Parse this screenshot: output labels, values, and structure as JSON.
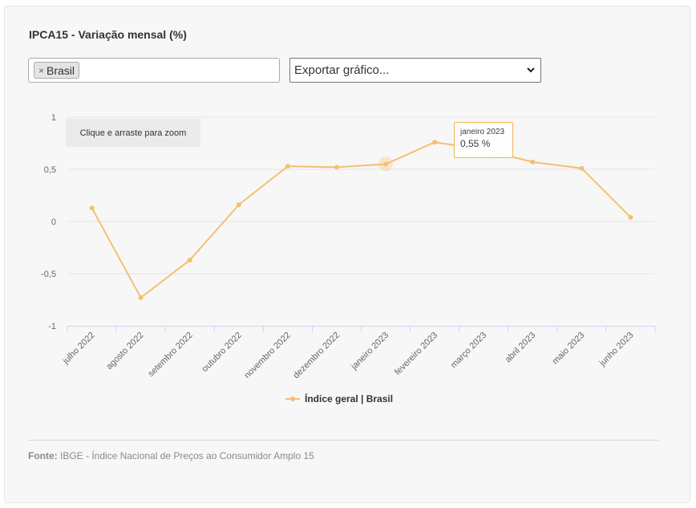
{
  "title": "IPCA15 - Variação mensal (%)",
  "filter": {
    "chip_label": "Brasil",
    "remove_symbol": "×"
  },
  "export_select": {
    "selected": "Exportar gráfico..."
  },
  "zoom_hint": "Clique e arraste para zoom",
  "tooltip": {
    "date": "janeiro 2023",
    "value": "0,55 %"
  },
  "legend_label": "Índice geral | Brasil",
  "source": {
    "label": "Fonte:",
    "text": "IBGE - Índice Nacional de Preços ao Consumidor Amplo 15"
  },
  "colors": {
    "series": "#f5bf73",
    "grid": "#e6e6e6",
    "axis": "#ccd6eb"
  },
  "chart_data": {
    "type": "line",
    "categories": [
      "julho 2022",
      "agosto 2022",
      "setembro 2022",
      "outubro 2022",
      "novembro 2022",
      "dezembro 2022",
      "janeiro 2023",
      "fevereiro 2023",
      "março 2023",
      "abril 2023",
      "maio 2023",
      "junho 2023"
    ],
    "series": [
      {
        "name": "Índice geral | Brasil",
        "values": [
          0.13,
          -0.73,
          -0.37,
          0.16,
          0.53,
          0.52,
          0.55,
          0.76,
          0.69,
          0.57,
          0.51,
          0.04
        ]
      }
    ],
    "y_ticks": [
      "1",
      "0,5",
      "0",
      "-0,5",
      "-1"
    ],
    "y_tick_values": [
      1,
      0.5,
      0,
      -0.5,
      -1
    ],
    "ylim": [
      -1,
      1
    ],
    "highlighted_index": 6,
    "grid": true,
    "legend_position": "bottom"
  }
}
